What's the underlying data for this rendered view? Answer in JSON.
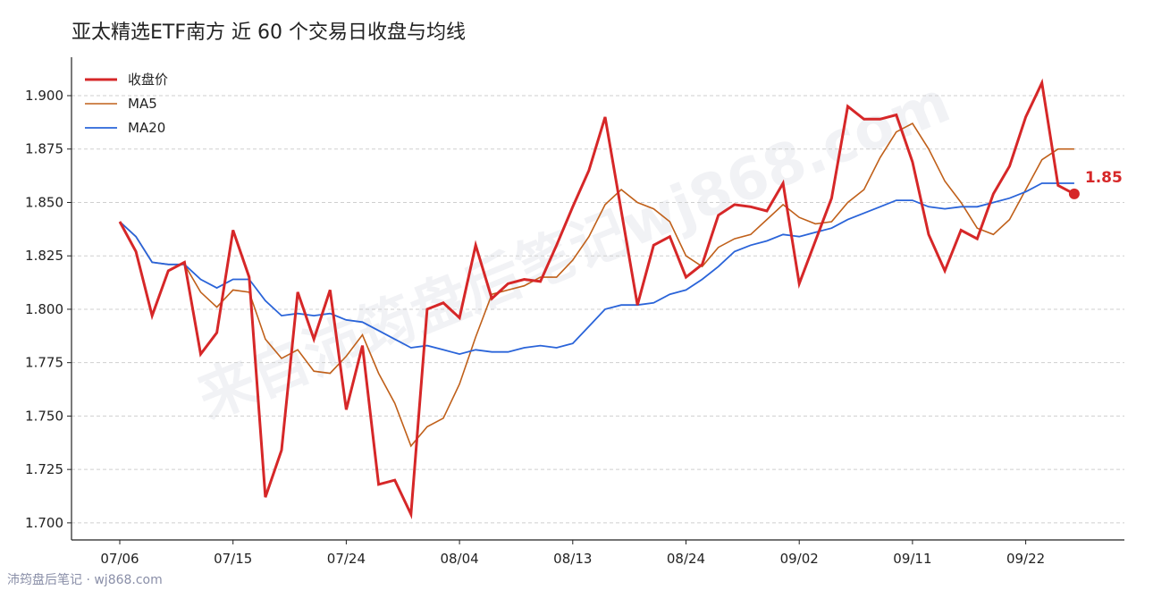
{
  "title": "亚太精选ETF南方 近 60 个交易日收盘与均线",
  "footer": "沛筠盘后笔记 · wj868.com",
  "watermark": "来自沛筠盘后笔记wj868.com",
  "chart_data": {
    "type": "line",
    "title": "亚太精选ETF南方 近 60 个交易日收盘与均线",
    "xlabel": "",
    "ylabel": "",
    "ylim": [
      1.692,
      1.918
    ],
    "yticks": [
      1.7,
      1.725,
      1.75,
      1.775,
      1.8,
      1.825,
      1.85,
      1.875,
      1.9
    ],
    "ytick_labels": [
      "1.700",
      "1.725",
      "1.750",
      "1.775",
      "1.800",
      "1.825",
      "1.850",
      "1.875",
      "1.900"
    ],
    "xticks": [
      {
        "index": 0,
        "label": "07/06"
      },
      {
        "index": 7,
        "label": "07/15"
      },
      {
        "index": 14,
        "label": "07/24"
      },
      {
        "index": 21,
        "label": "08/04"
      },
      {
        "index": 28,
        "label": "08/13"
      },
      {
        "index": 35,
        "label": "08/24"
      },
      {
        "index": 42,
        "label": "09/02"
      },
      {
        "index": 49,
        "label": "09/11"
      },
      {
        "index": 56,
        "label": "09/22"
      }
    ],
    "grid": true,
    "legend": "top-left",
    "last_value_label": "1.85",
    "series": [
      {
        "name": "收盘价",
        "color": "#d62728",
        "values": [
          1.841,
          1.827,
          1.797,
          1.818,
          1.822,
          1.779,
          1.789,
          1.837,
          1.815,
          1.712,
          1.734,
          1.808,
          1.786,
          1.809,
          1.753,
          1.783,
          1.718,
          1.72,
          1.704,
          1.8,
          1.803,
          1.796,
          1.83,
          1.805,
          1.812,
          1.814,
          1.813,
          1.83,
          1.848,
          1.865,
          1.89,
          1.846,
          1.802,
          1.83,
          1.834,
          1.815,
          1.821,
          1.844,
          1.849,
          1.848,
          1.846,
          1.859,
          1.812,
          1.832,
          1.852,
          1.895,
          1.889,
          1.889,
          1.891,
          1.869,
          1.835,
          1.818,
          1.837,
          1.833,
          1.854,
          1.867,
          1.89,
          1.906,
          1.858,
          1.854
        ]
      },
      {
        "name": "MA5",
        "color": "#c0601a",
        "values": [
          1.841,
          1.834,
          1.822,
          1.821,
          1.821,
          1.808,
          1.801,
          1.809,
          1.808,
          1.786,
          1.777,
          1.781,
          1.771,
          1.77,
          1.778,
          1.788,
          1.77,
          1.756,
          1.736,
          1.745,
          1.749,
          1.765,
          1.787,
          1.807,
          1.809,
          1.811,
          1.815,
          1.815,
          1.823,
          1.834,
          1.849,
          1.856,
          1.85,
          1.847,
          1.841,
          1.825,
          1.82,
          1.829,
          1.833,
          1.835,
          1.842,
          1.849,
          1.843,
          1.84,
          1.841,
          1.85,
          1.856,
          1.871,
          1.883,
          1.887,
          1.875,
          1.86,
          1.85,
          1.838,
          1.835,
          1.842,
          1.856,
          1.87,
          1.875,
          1.875
        ]
      },
      {
        "name": "MA20",
        "color": "#2a64d9",
        "values": [
          1.841,
          1.834,
          1.822,
          1.821,
          1.821,
          1.814,
          1.81,
          1.814,
          1.814,
          1.804,
          1.797,
          1.798,
          1.797,
          1.798,
          1.795,
          1.794,
          1.79,
          1.786,
          1.782,
          1.783,
          1.781,
          1.779,
          1.781,
          1.78,
          1.78,
          1.782,
          1.783,
          1.782,
          1.784,
          1.792,
          1.8,
          1.802,
          1.802,
          1.803,
          1.807,
          1.809,
          1.814,
          1.82,
          1.827,
          1.83,
          1.832,
          1.835,
          1.834,
          1.836,
          1.838,
          1.842,
          1.845,
          1.848,
          1.851,
          1.851,
          1.848,
          1.847,
          1.848,
          1.848,
          1.85,
          1.852,
          1.855,
          1.859,
          1.859,
          1.859
        ]
      }
    ]
  }
}
